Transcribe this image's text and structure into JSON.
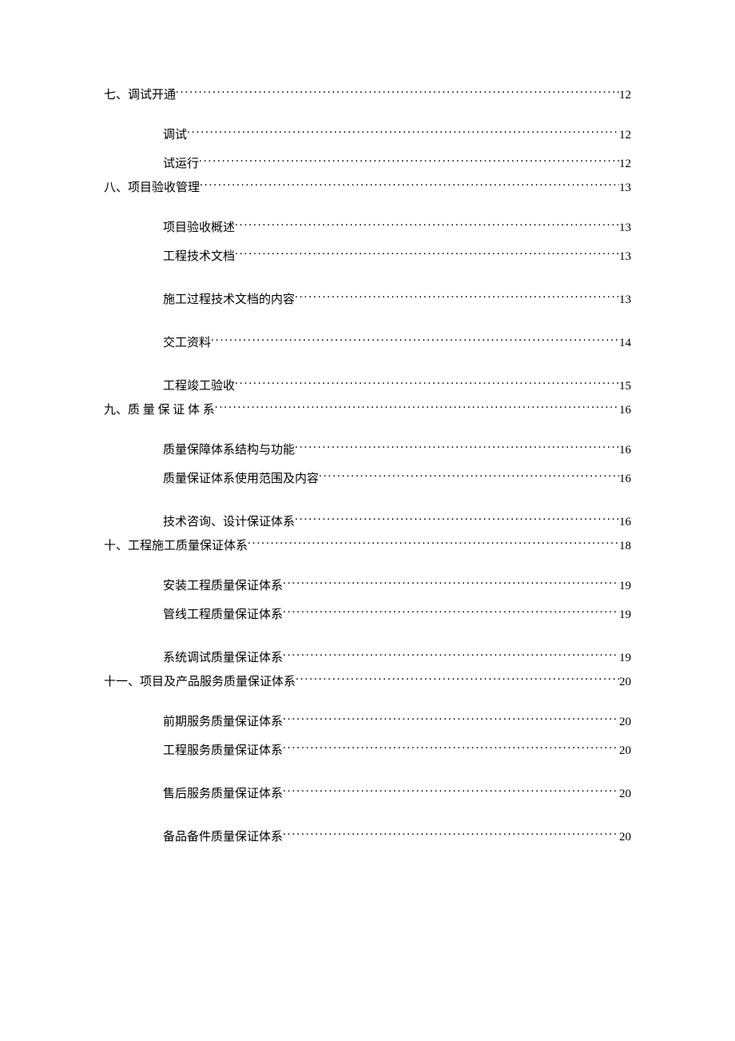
{
  "toc": {
    "sections": [
      {
        "prefix": "七、",
        "title": "调试开通",
        "page": "12",
        "spaced": false,
        "subs": [
          {
            "title": "调试",
            "page": "12"
          },
          {
            "title": "试运行",
            "page": "12"
          }
        ]
      },
      {
        "prefix": "八、",
        "title": "项目验收管理",
        "page": "13",
        "spaced": false,
        "subs": [
          {
            "title": "项目验收概述",
            "page": "13"
          },
          {
            "title": "工程技术文档",
            "page": "13"
          },
          {
            "title": "施工过程技术文档的内容",
            "page": "13"
          },
          {
            "title": "交工资料",
            "page": "14"
          },
          {
            "title": "工程竣工验收",
            "page": "15"
          }
        ]
      },
      {
        "prefix": "九、 ",
        "title": "质 量 保 证 体 系 ",
        "page": "16",
        "spaced": false,
        "subs": [
          {
            "title": "质量保障体系结构与功能",
            "page": "16"
          },
          {
            "title": "质量保证体系使用范围及内容",
            "page": "16"
          },
          {
            "title": "技术咨询、设计保证体系",
            "page": "16"
          }
        ]
      },
      {
        "prefix": "十、",
        "title": "工程施工质量保证体系",
        "page": "18",
        "spaced": false,
        "subs": [
          {
            "title": "安装工程质量保证体系",
            "page": "19"
          },
          {
            "title": "管线工程质量保证体系",
            "page": "19"
          },
          {
            "title": "系统调试质量保证体系",
            "page": "19"
          }
        ]
      },
      {
        "prefix": "十一、",
        "title": "项目及产品服务质量保证体系",
        "page": "20",
        "spaced": false,
        "subs": [
          {
            "title": "前期服务质量保证体系",
            "page": "20"
          },
          {
            "title": "工程服务质量保证体系",
            "page": "20"
          },
          {
            "title": "售后服务质量保证体系",
            "page": "20"
          },
          {
            "title": "备品备件质量保证体系",
            "page": "20"
          }
        ]
      }
    ]
  }
}
